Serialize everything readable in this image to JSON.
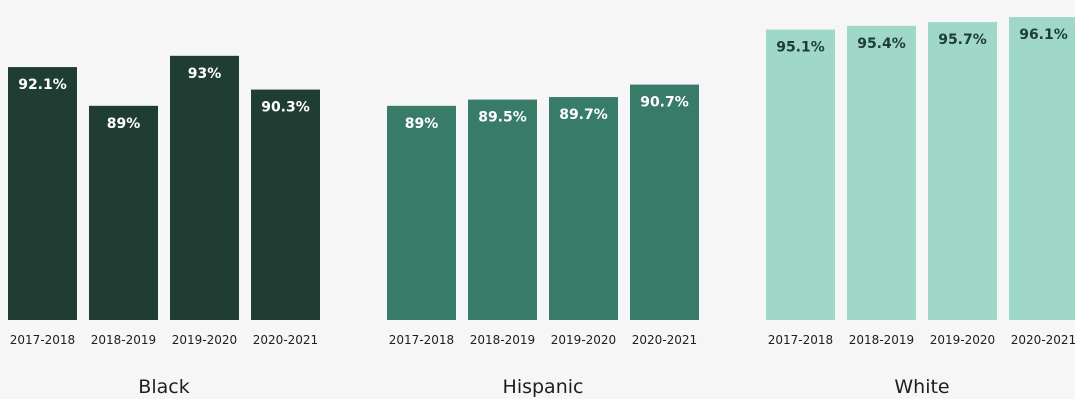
{
  "chart_data": [
    {
      "type": "bar",
      "title": "Black",
      "categories": [
        "2017-2018",
        "2018-2019",
        "2019-2020",
        "2020-2021"
      ],
      "values": [
        92.1,
        89,
        93,
        90.3
      ],
      "value_labels": [
        "92.1%",
        "89%",
        "93%",
        "90.3%"
      ],
      "color": "#1f3d32",
      "label_color": "#ffffff"
    },
    {
      "type": "bar",
      "title": "Hispanic",
      "categories": [
        "2017-2018",
        "2018-2019",
        "2019-2020",
        "2020-2021"
      ],
      "values": [
        89,
        89.5,
        89.7,
        90.7
      ],
      "value_labels": [
        "89%",
        "89.5%",
        "89.7%",
        "90.7%"
      ],
      "color": "#387b69",
      "label_color": "#ffffff"
    },
    {
      "type": "bar",
      "title": "White",
      "categories": [
        "2017-2018",
        "2018-2019",
        "2019-2020",
        "2020-2021"
      ],
      "values": [
        95.1,
        95.4,
        95.7,
        96.1
      ],
      "value_labels": [
        "95.1%",
        "95.4%",
        "95.7%",
        "96.1%"
      ],
      "color": "#9fd8c8",
      "label_color": "#1f3d32"
    }
  ]
}
